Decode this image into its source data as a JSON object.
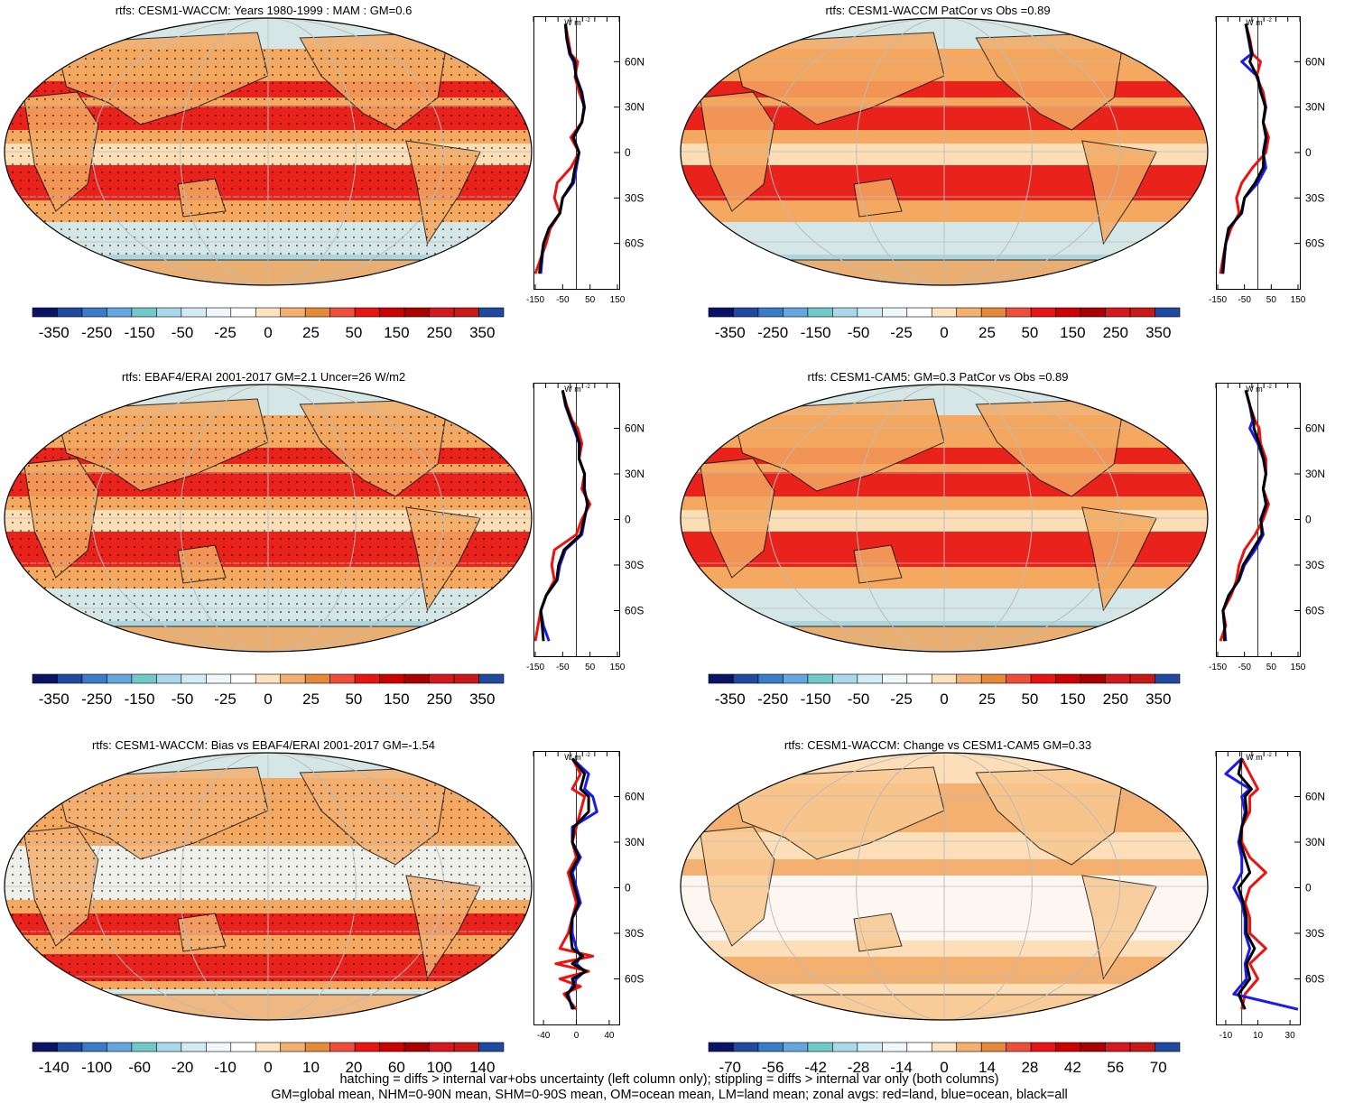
{
  "chart_data": [
    {
      "type": "map",
      "title": "rtfs: CESM1-WACCM: Years 1980-1999 : MAM : GM=0.6",
      "colorbar_labels": [
        "-350",
        "-250",
        "-150",
        "-50",
        "-25",
        "0",
        "25",
        "50",
        "150",
        "250",
        "350"
      ],
      "zonal": {
        "unit": "W m",
        "unit_sup": "-2",
        "xticks": [
          "-150",
          "-50",
          "50",
          "150"
        ],
        "xrange": [
          -150,
          150
        ],
        "yticks": [
          "60N",
          "30N",
          "0",
          "30S",
          "60S"
        ],
        "series": [
          {
            "name": "land",
            "color": "#ee1111",
            "lat": [
              85,
              75,
              65,
              60,
              50,
              40,
              30,
              20,
              10,
              0,
              -10,
              -20,
              -30,
              -40,
              -50,
              -60,
              -70,
              -80
            ],
            "values": [
              -40,
              -30,
              -20,
              5,
              -5,
              10,
              30,
              20,
              -20,
              10,
              -20,
              -70,
              -80,
              -60,
              -95,
              -110,
              -130,
              -150
            ]
          },
          {
            "name": "ocean",
            "color": "#1a1aee",
            "lat": [
              85,
              75,
              65,
              60,
              50,
              40,
              30,
              20,
              10,
              0,
              -10,
              -20,
              -30,
              -40,
              -50,
              -60,
              -70,
              -80
            ],
            "values": [
              -40,
              -35,
              -25,
              -10,
              0,
              20,
              30,
              20,
              -10,
              10,
              0,
              -10,
              -50,
              -60,
              -100,
              -120,
              -125,
              -130
            ]
          },
          {
            "name": "all",
            "color": "#000000",
            "lat": [
              85,
              75,
              65,
              60,
              50,
              40,
              30,
              20,
              10,
              0,
              -10,
              -20,
              -30,
              -40,
              -50,
              -60,
              -70,
              -80
            ],
            "values": [
              -40,
              -35,
              -22,
              -5,
              -2,
              18,
              28,
              20,
              -12,
              10,
              -5,
              -15,
              -50,
              -60,
              -100,
              -120,
              -128,
              -135
            ]
          }
        ]
      }
    },
    {
      "type": "map",
      "title": "rtfs: CESM1-WACCM PatCor vs Obs =0.89",
      "colorbar_labels": [
        "-350",
        "-250",
        "-150",
        "-50",
        "-25",
        "0",
        "25",
        "50",
        "150",
        "250",
        "350"
      ],
      "zonal": {
        "unit": "W m",
        "unit_sup": "-2",
        "xticks": [
          "-150",
          "-50",
          "50",
          "150"
        ],
        "xrange": [
          -150,
          150
        ],
        "yticks": [
          "60N",
          "30N",
          "0",
          "30S",
          "60S"
        ],
        "series": [
          {
            "name": "land",
            "color": "#ee1111",
            "lat": [
              85,
              75,
              65,
              60,
              50,
              40,
              30,
              20,
              10,
              0,
              -10,
              -20,
              -30,
              -40,
              -50,
              -60,
              -70,
              -80
            ],
            "values": [
              -45,
              -30,
              -20,
              10,
              -5,
              20,
              30,
              20,
              40,
              30,
              -20,
              -60,
              -80,
              -70,
              -100,
              -120,
              -130,
              -140
            ]
          },
          {
            "name": "ocean",
            "color": "#1a1aee",
            "lat": [
              85,
              75,
              65,
              60,
              50,
              40,
              30,
              20,
              10,
              0,
              -10,
              -20,
              -30,
              -40,
              -50,
              -60,
              -70,
              -80
            ],
            "values": [
              -45,
              -35,
              -25,
              -60,
              0,
              10,
              30,
              20,
              30,
              20,
              30,
              0,
              -50,
              -60,
              -110,
              -120,
              -125,
              -130
            ]
          },
          {
            "name": "all",
            "color": "#000000",
            "lat": [
              85,
              75,
              65,
              60,
              50,
              40,
              30,
              20,
              10,
              0,
              -10,
              -20,
              -30,
              -40,
              -50,
              -60,
              -70,
              -80
            ],
            "values": [
              -45,
              -33,
              -22,
              -30,
              -2,
              12,
              28,
              20,
              32,
              22,
              20,
              -10,
              -50,
              -62,
              -108,
              -120,
              -127,
              -132
            ]
          }
        ]
      }
    },
    {
      "type": "map",
      "title": "rtfs: EBAF4/ERAI 2001-2017 GM=2.1 Uncer=26 W/m2",
      "colorbar_labels": [
        "-350",
        "-250",
        "-150",
        "-50",
        "-25",
        "0",
        "25",
        "50",
        "150",
        "250",
        "350"
      ],
      "zonal": {
        "unit": "W m",
        "unit_sup": "-2",
        "xticks": [
          "-150",
          "-50",
          "50",
          "150"
        ],
        "xrange": [
          -150,
          150
        ],
        "yticks": [
          "60N",
          "30N",
          "0",
          "30S",
          "60S"
        ],
        "series": [
          {
            "name": "land",
            "color": "#ee1111",
            "lat": [
              85,
              75,
              65,
              60,
              50,
              40,
              30,
              20,
              10,
              0,
              -10,
              -20,
              -30,
              -40,
              -50,
              -60,
              -70,
              -80
            ],
            "values": [
              -50,
              -35,
              -15,
              5,
              20,
              10,
              30,
              20,
              50,
              20,
              0,
              -80,
              -90,
              -80,
              -110,
              -130,
              -140,
              -150
            ]
          },
          {
            "name": "ocean",
            "color": "#1a1aee",
            "lat": [
              85,
              75,
              65,
              60,
              50,
              40,
              30,
              20,
              10,
              0,
              -10,
              -20,
              -30,
              -40,
              -50,
              -60,
              -70,
              -80
            ],
            "values": [
              -50,
              -40,
              -20,
              -10,
              10,
              10,
              30,
              30,
              40,
              30,
              20,
              -40,
              -60,
              -70,
              -110,
              -130,
              -120,
              -100
            ]
          },
          {
            "name": "all",
            "color": "#000000",
            "lat": [
              85,
              75,
              65,
              60,
              50,
              40,
              30,
              20,
              10,
              0,
              -10,
              -20,
              -30,
              -40,
              -50,
              -60,
              -70,
              -80
            ],
            "values": [
              -50,
              -38,
              -18,
              -5,
              12,
              10,
              30,
              28,
              42,
              28,
              15,
              -45,
              -65,
              -72,
              -110,
              -130,
              -125,
              -120
            ]
          }
        ]
      }
    },
    {
      "type": "map",
      "title": "rtfs: CESM1-CAM5: GM=0.3 PatCor vs Obs =0.89",
      "colorbar_labels": [
        "-350",
        "-250",
        "-150",
        "-50",
        "-25",
        "0",
        "25",
        "50",
        "150",
        "250",
        "350"
      ],
      "zonal": {
        "unit": "W m",
        "unit_sup": "-2",
        "xticks": [
          "-150",
          "-50",
          "50",
          "150"
        ],
        "xrange": [
          -150,
          150
        ],
        "yticks": [
          "60N",
          "30N",
          "0",
          "30S",
          "60S"
        ],
        "series": [
          {
            "name": "land",
            "color": "#ee1111",
            "lat": [
              85,
              75,
              65,
              60,
              50,
              40,
              30,
              20,
              10,
              0,
              -10,
              -20,
              -30,
              -40,
              -50,
              -60,
              -70,
              -80
            ],
            "values": [
              -45,
              -30,
              -10,
              5,
              10,
              30,
              30,
              20,
              40,
              20,
              -10,
              -50,
              -70,
              -80,
              -100,
              -130,
              -120,
              -140
            ]
          },
          {
            "name": "ocean",
            "color": "#1a1aee",
            "lat": [
              85,
              75,
              65,
              60,
              50,
              40,
              30,
              20,
              10,
              0,
              -10,
              -20,
              -30,
              -40,
              -50,
              -60,
              -70,
              -80
            ],
            "values": [
              -45,
              -30,
              -20,
              -30,
              0,
              20,
              30,
              20,
              30,
              10,
              20,
              -10,
              -50,
              -70,
              -110,
              -130,
              -125,
              -120
            ]
          },
          {
            "name": "all",
            "color": "#000000",
            "lat": [
              85,
              75,
              65,
              60,
              50,
              40,
              30,
              20,
              10,
              0,
              -10,
              -20,
              -30,
              -40,
              -50,
              -60,
              -70,
              -80
            ],
            "values": [
              -45,
              -30,
              -15,
              -15,
              5,
              22,
              30,
              20,
              32,
              12,
              15,
              -20,
              -55,
              -72,
              -108,
              -130,
              -124,
              -125
            ]
          }
        ]
      }
    },
    {
      "type": "map",
      "title": "rtfs: CESM1-WACCM: Bias vs EBAF4/ERAI 2001-2017 GM=-1.54",
      "colorbar_labels": [
        "-140",
        "-100",
        "-60",
        "-20",
        "-10",
        "0",
        "10",
        "20",
        "60",
        "100",
        "140"
      ],
      "zonal": {
        "unit": "W m",
        "unit_sup": "-2",
        "xticks": [
          "-40",
          "0",
          "40"
        ],
        "xrange": [
          -50,
          50
        ],
        "yticks": [
          "60N",
          "30N",
          "0",
          "30S",
          "60S"
        ],
        "series": [
          {
            "name": "land",
            "color": "#ee1111",
            "lat": [
              85,
              75,
              65,
              60,
              50,
              40,
              30,
              20,
              10,
              0,
              -10,
              -20,
              -30,
              -40,
              -45,
              -50,
              -55,
              -60,
              -65,
              -70,
              -80
            ],
            "values": [
              -5,
              5,
              -5,
              10,
              5,
              0,
              -5,
              0,
              -10,
              -5,
              0,
              -5,
              -10,
              -20,
              20,
              -25,
              15,
              -20,
              5,
              -15,
              0
            ]
          },
          {
            "name": "ocean",
            "color": "#1a1aee",
            "lat": [
              85,
              75,
              65,
              60,
              50,
              40,
              30,
              20,
              10,
              0,
              -10,
              -20,
              -30,
              -40,
              -45,
              -50,
              -55,
              -60,
              -65,
              -70,
              -80
            ],
            "values": [
              -5,
              15,
              10,
              20,
              25,
              -5,
              -5,
              5,
              -5,
              0,
              5,
              -5,
              -5,
              0,
              5,
              0,
              10,
              0,
              -5,
              -10,
              -5
            ]
          },
          {
            "name": "all",
            "color": "#000000",
            "lat": [
              85,
              75,
              65,
              60,
              50,
              40,
              30,
              20,
              10,
              0,
              -10,
              -20,
              -30,
              -40,
              -45,
              -50,
              -55,
              -60,
              -65,
              -70,
              -80
            ],
            "values": [
              -5,
              10,
              5,
              15,
              15,
              -3,
              -5,
              3,
              -7,
              -2,
              3,
              -5,
              -7,
              -5,
              8,
              -5,
              12,
              -5,
              -2,
              -12,
              -3
            ]
          }
        ]
      }
    },
    {
      "type": "map",
      "title": "rtfs: CESM1-WACCM: Change vs CESM1-CAM5 GM=0.33",
      "colorbar_labels": [
        "-70",
        "-56",
        "-42",
        "-28",
        "-14",
        "0",
        "14",
        "28",
        "42",
        "56",
        "70"
      ],
      "zonal": {
        "unit": "W m",
        "unit_sup": "-2",
        "xticks": [
          "-10",
          "10",
          "30"
        ],
        "xrange": [
          -15,
          35
        ],
        "yticks": [
          "60N",
          "30N",
          "0",
          "30S",
          "60S"
        ],
        "series": [
          {
            "name": "land",
            "color": "#ee1111",
            "lat": [
              85,
              75,
              65,
              60,
              50,
              40,
              30,
              20,
              10,
              0,
              -10,
              -20,
              -30,
              -40,
              -50,
              -60,
              -70,
              -80
            ],
            "values": [
              0,
              5,
              10,
              5,
              5,
              0,
              0,
              5,
              15,
              5,
              2,
              5,
              5,
              15,
              5,
              10,
              2,
              0
            ]
          },
          {
            "name": "ocean",
            "color": "#1a1aee",
            "lat": [
              85,
              75,
              65,
              60,
              50,
              40,
              30,
              20,
              10,
              0,
              -10,
              -20,
              -30,
              -40,
              -50,
              -60,
              -70,
              -80
            ],
            "values": [
              0,
              -10,
              5,
              0,
              2,
              0,
              -2,
              0,
              0,
              -5,
              0,
              2,
              2,
              5,
              2,
              3,
              -5,
              35
            ]
          },
          {
            "name": "all",
            "color": "#000000",
            "lat": [
              85,
              75,
              65,
              60,
              50,
              40,
              30,
              20,
              10,
              0,
              -10,
              -20,
              -30,
              -40,
              -50,
              -60,
              -70,
              -80
            ],
            "values": [
              0,
              -2,
              6,
              2,
              3,
              0,
              -1,
              2,
              5,
              -2,
              1,
              3,
              3,
              8,
              3,
              5,
              -2,
              2
            ]
          }
        ]
      }
    }
  ],
  "footnote": {
    "line1": "hatching = diffs > internal var+obs uncertainty (left column only); stippling = diffs > internal var only (both columns)",
    "line2": "GM=global mean, NHM=0-90N mean, SHM=0-90S mean, OM=ocean mean, LM=land mean; zonal avgs: red=land, blue=ocean, black=all"
  },
  "colors": {
    "palette": [
      "#0a1466",
      "#1f4aa0",
      "#3a7cc8",
      "#66a6e0",
      "#70c8c8",
      "#a8d8ea",
      "#d2ecf6",
      "#f0f7fb",
      "#ffffff",
      "#fde3c0",
      "#f4b070",
      "#e58a3a",
      "#f04e3c",
      "#e81414",
      "#cc0000",
      "#aa0000",
      "#d41820",
      "#c81818",
      "#1f4aa0"
    ]
  }
}
